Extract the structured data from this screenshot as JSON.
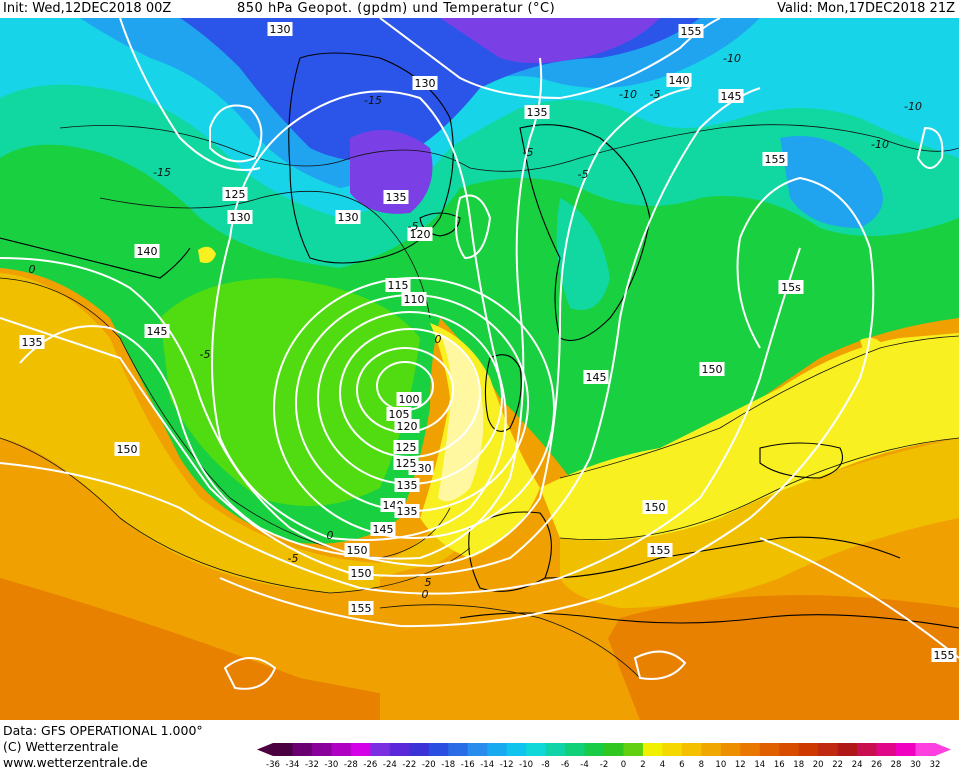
{
  "header": {
    "init_text": "Init: Wed,12DEC2018 00Z",
    "title": "850 hPa Geopot. (gpdm) und Temperatur (°C)",
    "valid_text": "Valid: Mon,17DEC2018 21Z"
  },
  "footer": {
    "data_text": "Data: GFS OPERATIONAL 1.000°",
    "copyright_text": "(C) Wetterzentrale",
    "url_text": "www.wetterzentrale.de"
  },
  "colorbar": {
    "labels": [
      "-36",
      "-34",
      "-32",
      "-30",
      "-28",
      "-26",
      "-24",
      "-22",
      "-20",
      "-18",
      "-16",
      "-14",
      "-12",
      "-10",
      "-8",
      "-6",
      "-4",
      "-2",
      "0",
      "2",
      "4",
      "6",
      "8",
      "10",
      "12",
      "14",
      "16",
      "18",
      "20",
      "22",
      "24",
      "26",
      "28",
      "30",
      "32"
    ],
    "colors": [
      "#4a0040",
      "#6a0070",
      "#8a009a",
      "#b000c4",
      "#d400e8",
      "#7a30e0",
      "#5a28d8",
      "#3a32d6",
      "#2a4ee0",
      "#2a6ce6",
      "#2a8cec",
      "#18aaf0",
      "#10c4ee",
      "#10d8d8",
      "#10d4a8",
      "#10d078",
      "#18cc48",
      "#30c820",
      "#60d010",
      "#f0f000",
      "#f4d800",
      "#f4c000",
      "#f0a800",
      "#ec9000",
      "#e87800",
      "#e06000",
      "#d84c00",
      "#cc3800",
      "#c02810",
      "#b01818",
      "#c81050",
      "#e00888",
      "#f000c0",
      "#ff40e0"
    ]
  },
  "map": {
    "height_labels": [
      "130",
      "130",
      "125",
      "130",
      "130",
      "135",
      "135",
      "140",
      "145",
      "155",
      "15s",
      "140",
      "145",
      "135",
      "150",
      "145",
      "150",
      "155",
      "150",
      "150",
      "155",
      "155",
      "150",
      "145",
      "140",
      "135",
      "130",
      "125",
      "120",
      "105",
      "100",
      "110",
      "115",
      "120",
      "125",
      "135",
      "155"
    ],
    "temp_labels": [
      "-15",
      "-15",
      "-10",
      "-10",
      "-10",
      "-5",
      "-5",
      "0",
      "0",
      "0",
      "-5",
      "-5",
      "0",
      "-5",
      "-5",
      "5",
      "-10"
    ],
    "palette": {
      "magenta": "#f000e0",
      "violet": "#7b3fe6",
      "blue": "#2a55e8",
      "sky": "#20a4f0",
      "cyan": "#18d4e8",
      "teal": "#10d8a0",
      "green": "#18d040",
      "lime": "#50dc10",
      "yellow": "#f8f020",
      "lightyellow": "#fff8a0",
      "gold": "#f0c000",
      "orange": "#f0a000",
      "darkorange": "#e88000"
    }
  }
}
